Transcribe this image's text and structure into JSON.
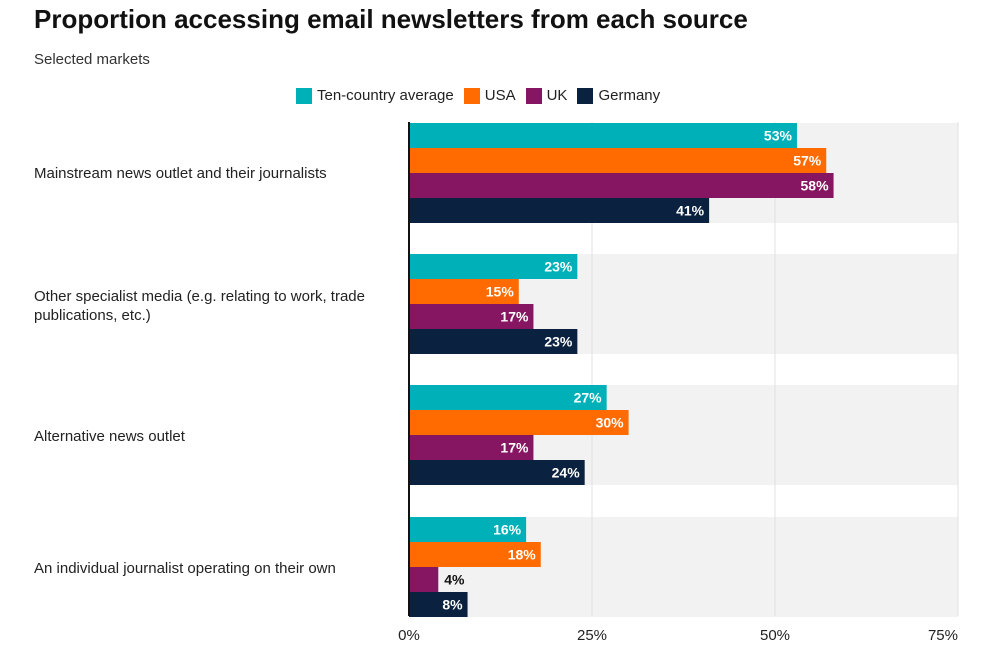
{
  "chart_data": {
    "type": "bar",
    "orientation": "horizontal",
    "title": "Proportion accessing email newsletters from each source",
    "subtitle": "Selected markets",
    "categories": [
      "Mainstream news outlet and their journalists",
      "Other specialist media (e.g. relating to work, trade publications, etc.)",
      "Alternative news outlet",
      "An individual journalist operating on their own"
    ],
    "series": [
      {
        "name": "Ten-country average",
        "color": "#00b0b9",
        "values": [
          53,
          23,
          27,
          16
        ]
      },
      {
        "name": "USA",
        "color": "#ff6b00",
        "values": [
          57,
          15,
          30,
          18
        ]
      },
      {
        "name": "UK",
        "color": "#861661",
        "values": [
          58,
          17,
          17,
          4
        ]
      },
      {
        "name": "Germany",
        "color": "#0a2240",
        "values": [
          41,
          23,
          24,
          8
        ]
      }
    ],
    "xlim": [
      0,
      75
    ],
    "xticks": [
      "0%",
      "25%",
      "50%",
      "75%"
    ],
    "value_suffix": "%",
    "grid": true,
    "legend": "top-center"
  }
}
